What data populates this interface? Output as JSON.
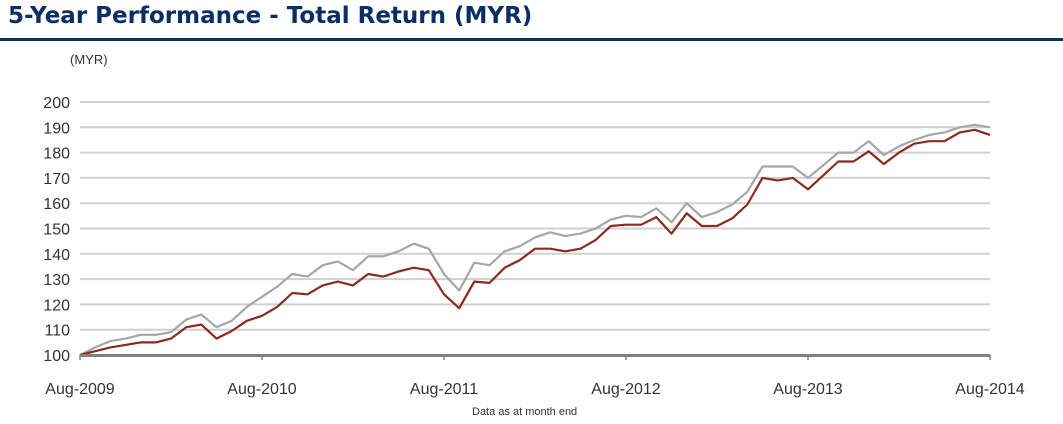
{
  "header": {
    "title": "5-Year Performance - Total Return (MYR)",
    "accent_color": "#0b2e63"
  },
  "chart_data": {
    "type": "line",
    "title": "5-Year Performance - Total Return (MYR)",
    "xlabel": "",
    "ylabel": "(MYR)",
    "note": "Data as at month end",
    "ylim": [
      100,
      200
    ],
    "yticks": [
      100,
      110,
      120,
      130,
      140,
      150,
      160,
      170,
      180,
      190,
      200
    ],
    "xtick_labels": [
      "Aug-2009",
      "Aug-2010",
      "Aug-2011",
      "Aug-2012",
      "Aug-2013",
      "Aug-2014"
    ],
    "grid": true,
    "legend": null,
    "x_start": "Aug-2009",
    "x_end": "Aug-2014",
    "frequency": "monthly",
    "series": [
      {
        "name": "Series A (grey)",
        "color": "#a6a6a6",
        "values": [
          100,
          103,
          105.5,
          106.5,
          108,
          108,
          109,
          114,
          116,
          111,
          113.5,
          119,
          123,
          127,
          132,
          131,
          135.5,
          137,
          133.5,
          139,
          139,
          141,
          144,
          142,
          132,
          125.5,
          136.5,
          135.5,
          141,
          143,
          146.5,
          148.5,
          147,
          148,
          150,
          153.5,
          155,
          154.5,
          158,
          152.5,
          160,
          154.5,
          156.5,
          159.5,
          164.5,
          174.5,
          174.5,
          174.5,
          170,
          175,
          180,
          180,
          184.5,
          179,
          182.5,
          185,
          187,
          188,
          190,
          191,
          190
        ]
      },
      {
        "name": "Series B (red)",
        "color": "#8b2a1e",
        "values": [
          100,
          101.5,
          103,
          104,
          105,
          105,
          106.5,
          111,
          112,
          106.5,
          109.5,
          113.5,
          115.5,
          119,
          124.5,
          124,
          127.5,
          129,
          127.5,
          132,
          131,
          133,
          134.5,
          133.5,
          124,
          118.5,
          129,
          128.5,
          134.5,
          137.5,
          142,
          142,
          141,
          142,
          145.5,
          151,
          151.5,
          151.5,
          154.5,
          148,
          156,
          151,
          151,
          154,
          159.5,
          170,
          169,
          170,
          165.5,
          171,
          176.5,
          176.5,
          180.5,
          175.5,
          180,
          183.5,
          184.5,
          184.5,
          188,
          189,
          187
        ]
      }
    ]
  },
  "labels": {
    "unit": "(MYR)",
    "note": "Data as at month end"
  }
}
